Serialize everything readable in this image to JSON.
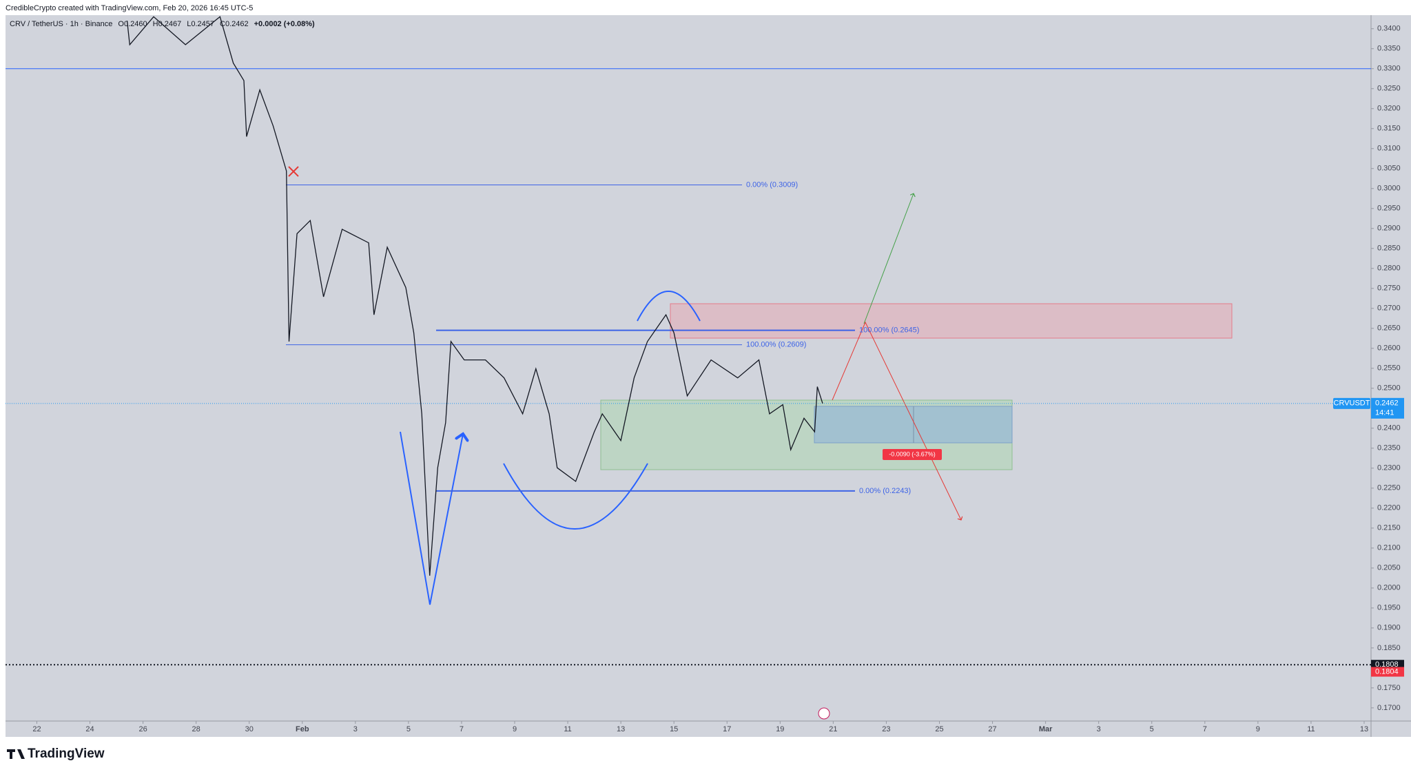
{
  "header": {
    "credit": "CredibleCrypto created with TradingView.com, Feb 20, 2026 16:45 UTC-5",
    "brand": "TradingView"
  },
  "chart_data": {
    "type": "line",
    "title": "CRV / TetherUS · 1h · Binance",
    "ohlc": {
      "labels": [
        "O",
        "H",
        "L",
        "C"
      ],
      "values": [
        0.246,
        0.2467,
        0.2457,
        0.2462
      ],
      "value_labels": [
        "0.2460",
        "0.2467",
        "0.2457",
        "0.2462"
      ]
    },
    "change": "+0.0002 (+0.08%)",
    "series": [
      {
        "name": "CRVUSDT",
        "color": "#131722",
        "x": [
          25.4,
          25.5,
          26.4,
          27.6,
          28.9,
          29.4,
          29.8,
          29.9,
          30.4,
          30.9,
          31.4,
          31.5,
          31.8,
          32.3,
          32.8,
          33.5,
          34.5,
          34.7,
          35.2,
          35.9,
          36.2,
          36.5,
          36.8,
          37.1,
          37.4,
          37.6,
          38.1,
          38.9,
          39.6,
          40.3,
          40.8,
          41.3,
          41.6,
          42.3,
          43.0,
          43.3,
          44.0,
          44.5,
          45.0,
          45.7,
          46.0,
          46.5,
          47.4,
          48.4,
          49.2,
          49.6,
          50.1,
          50.4,
          50.9,
          51.3,
          51.4,
          51.6
        ],
        "values": [
          0.342,
          0.336,
          0.343,
          0.336,
          0.343,
          0.3314,
          0.327,
          0.313,
          0.3247,
          0.3157,
          0.3044,
          0.2617,
          0.2887,
          0.292,
          0.2729,
          0.2898,
          0.2864,
          0.2684,
          0.2853,
          0.2752,
          0.2639,
          0.2436,
          0.2031,
          0.2301,
          0.2414,
          0.2617,
          0.2571,
          0.2571,
          0.2526,
          0.2436,
          0.2549,
          0.2436,
          0.2301,
          0.2267,
          0.2391,
          0.2436,
          0.2369,
          0.2526,
          0.2617,
          0.2684,
          0.2639,
          0.2481,
          0.2571,
          0.2526,
          0.2571,
          0.2436,
          0.2459,
          0.2346,
          0.2425,
          0.2391,
          0.2504,
          0.2462
        ]
      }
    ],
    "last_price": {
      "value": 0.2462,
      "label": "0.2462"
    },
    "countdown": "14:41",
    "horizontal_line": {
      "value": 0.33,
      "color": "#2962ff"
    },
    "alert_line": {
      "value": 0.1808,
      "label": "0.1808"
    },
    "alert_price": {
      "value": 0.1804,
      "label": "0.1804"
    },
    "fib_levels": [
      {
        "value": 0.3009,
        "label": "0.00% (0.3009)"
      },
      {
        "value": 0.2609,
        "label": "100.00% (0.2609)"
      },
      {
        "value": 0.2645,
        "label": "100.00% (0.2645)"
      },
      {
        "value": 0.2243,
        "label": "0.00% (0.2243)"
      }
    ],
    "measure_label": "-0.0090 (-3.67%)",
    "xlim": [
      20.82,
      72.26
    ],
    "ylim": [
      0.1667,
      0.3434
    ],
    "xticks": [
      22,
      24,
      26,
      28,
      30,
      {
        "value": 32,
        "label": "Feb"
      },
      {
        "value": 34,
        "label": "3"
      },
      {
        "value": 36,
        "label": "5"
      },
      {
        "value": 38,
        "label": "7"
      },
      {
        "value": 40,
        "label": "9"
      },
      {
        "value": 42,
        "label": "11"
      },
      {
        "value": 44,
        "label": "13"
      },
      {
        "value": 46,
        "label": "15"
      },
      {
        "value": 48,
        "label": "17"
      },
      {
        "value": 50,
        "label": "19"
      },
      {
        "value": 52,
        "label": "21"
      },
      {
        "value": 54,
        "label": "23"
      },
      {
        "value": 56,
        "label": "25"
      },
      {
        "value": 58,
        "label": "27"
      },
      {
        "value": 60,
        "label": "Mar"
      },
      {
        "value": 62,
        "label": "3"
      },
      {
        "value": 64,
        "label": "5"
      },
      {
        "value": 66,
        "label": "7"
      },
      {
        "value": 68,
        "label": "9"
      },
      {
        "value": 70,
        "label": "11"
      },
      {
        "value": 72,
        "label": "13"
      }
    ],
    "yticks": [
      {
        "value": 0.34,
        "label": "0.3400"
      },
      {
        "value": 0.335,
        "label": "0.3350"
      },
      {
        "value": 0.33,
        "label": "0.3300"
      },
      {
        "value": 0.325,
        "label": "0.3250"
      },
      {
        "value": 0.32,
        "label": "0.3200"
      },
      {
        "value": 0.315,
        "label": "0.3150"
      },
      {
        "value": 0.31,
        "label": "0.3100"
      },
      {
        "value": 0.305,
        "label": "0.3050"
      },
      {
        "value": 0.3,
        "label": "0.3000"
      },
      {
        "value": 0.295,
        "label": "0.2950"
      },
      {
        "value": 0.29,
        "label": "0.2900"
      },
      {
        "value": 0.285,
        "label": "0.2850"
      },
      {
        "value": 0.28,
        "label": "0.2800"
      },
      {
        "value": 0.275,
        "label": "0.2750"
      },
      {
        "value": 0.27,
        "label": "0.2700"
      },
      {
        "value": 0.265,
        "label": "0.2650"
      },
      {
        "value": 0.26,
        "label": "0.2600"
      },
      {
        "value": 0.255,
        "label": "0.2550"
      },
      {
        "value": 0.25,
        "label": "0.2500"
      },
      {
        "value": 0.24,
        "label": "0.2400"
      },
      {
        "value": 0.235,
        "label": "0.2350"
      },
      {
        "value": 0.23,
        "label": "0.2300"
      },
      {
        "value": 0.225,
        "label": "0.2250"
      },
      {
        "value": 0.22,
        "label": "0.2200"
      },
      {
        "value": 0.215,
        "label": "0.2150"
      },
      {
        "value": 0.21,
        "label": "0.2100"
      },
      {
        "value": 0.205,
        "label": "0.2050"
      },
      {
        "value": 0.2,
        "label": "0.2000"
      },
      {
        "value": 0.195,
        "label": "0.1950"
      },
      {
        "value": 0.19,
        "label": "0.1900"
      },
      {
        "value": 0.185,
        "label": "0.1850"
      },
      {
        "value": 0.175,
        "label": "0.1750"
      },
      {
        "value": 0.17,
        "label": "0.1700"
      }
    ],
    "grid": false
  }
}
